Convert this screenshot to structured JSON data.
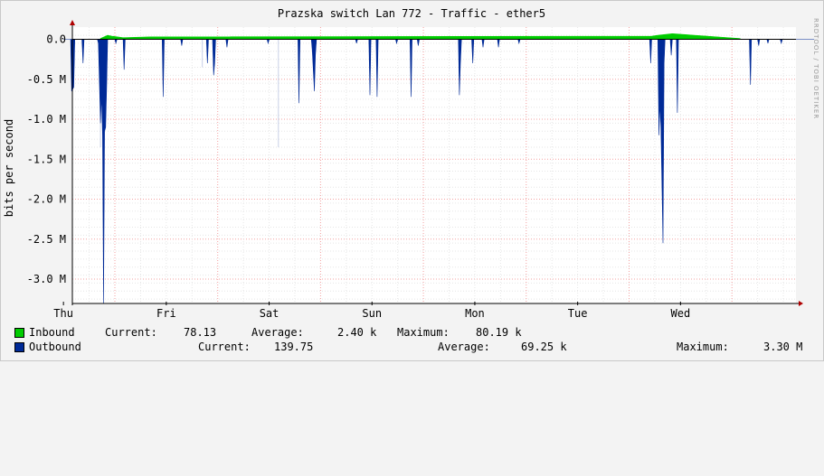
{
  "chart_data": {
    "type": "area",
    "title": "Prazska switch Lan 772 - Traffic - ether5",
    "ylabel": "bits per second",
    "xlabel": "",
    "ylim": [
      -3.3,
      0.05
    ],
    "y_unit": "M",
    "y_ticks": [
      0.0,
      -0.5,
      -1.0,
      -1.5,
      -2.0,
      -2.5,
      -3.0
    ],
    "y_tick_labels": [
      "0.0",
      "-0.5 M",
      "-1.0 M",
      "-1.5 M",
      "-2.0 M",
      "-2.5 M",
      "-3.0 M"
    ],
    "categories": [
      "Thu",
      "Fri",
      "Sat",
      "Sun",
      "Mon",
      "Tue",
      "Wed"
    ],
    "grid": true,
    "series": [
      {
        "name": "Inbound",
        "color": "#00cc00",
        "points": [
          [
            0.36,
            0.01
          ],
          [
            0.43,
            0.05
          ],
          [
            0.47,
            0.04
          ],
          [
            0.58,
            0.02
          ],
          [
            0.85,
            0.03
          ],
          [
            5.72,
            0.04
          ],
          [
            5.78,
            0.05
          ],
          [
            5.92,
            0.07
          ],
          [
            6.58,
            0.01
          ]
        ]
      },
      {
        "name": "Outbound",
        "color": "#002a97",
        "points": [
          [
            0.0,
            0.0
          ],
          [
            0.07,
            0.0
          ],
          [
            0.08,
            -0.65
          ],
          [
            0.1,
            -0.6
          ],
          [
            0.11,
            0.0
          ],
          [
            0.18,
            0.0
          ],
          [
            0.19,
            -0.3
          ],
          [
            0.2,
            0.0
          ],
          [
            0.33,
            0.0
          ],
          [
            0.34,
            -0.05
          ],
          [
            0.36,
            -1.05
          ],
          [
            0.37,
            -0.7
          ],
          [
            0.38,
            -1.2
          ],
          [
            0.39,
            -3.3
          ],
          [
            0.4,
            -1.15
          ],
          [
            0.41,
            -1.1
          ],
          [
            0.42,
            -0.6
          ],
          [
            0.43,
            0.0
          ],
          [
            0.5,
            0.0
          ],
          [
            0.51,
            -0.05
          ],
          [
            0.52,
            0.0
          ],
          [
            0.58,
            0.0
          ],
          [
            0.59,
            -0.38
          ],
          [
            0.6,
            0.0
          ],
          [
            0.96,
            0.0
          ],
          [
            0.97,
            -0.72
          ],
          [
            0.98,
            0.0
          ],
          [
            1.14,
            0.0
          ],
          [
            1.15,
            -0.08
          ],
          [
            1.16,
            0.0
          ],
          [
            1.39,
            0.0
          ],
          [
            1.4,
            -0.3
          ],
          [
            1.41,
            0.0
          ],
          [
            1.45,
            0.0
          ],
          [
            1.46,
            -0.45
          ],
          [
            1.47,
            -0.3
          ],
          [
            1.48,
            0.0
          ],
          [
            1.58,
            0.0
          ],
          [
            1.59,
            -0.1
          ],
          [
            1.6,
            0.0
          ],
          [
            1.98,
            0.0
          ],
          [
            1.99,
            -0.05
          ],
          [
            2.0,
            0.0
          ],
          [
            2.28,
            0.0
          ],
          [
            2.29,
            -0.8
          ],
          [
            2.3,
            0.0
          ],
          [
            2.41,
            0.0
          ],
          [
            2.42,
            -0.15
          ],
          [
            2.44,
            -0.65
          ],
          [
            2.45,
            -0.2
          ],
          [
            2.46,
            0.0
          ],
          [
            2.84,
            0.0
          ],
          [
            2.85,
            -0.05
          ],
          [
            2.86,
            0.0
          ],
          [
            2.97,
            0.0
          ],
          [
            2.98,
            -0.7
          ],
          [
            2.99,
            0.0
          ],
          [
            3.04,
            0.0
          ],
          [
            3.05,
            -0.72
          ],
          [
            3.06,
            0.0
          ],
          [
            3.23,
            0.0
          ],
          [
            3.24,
            -0.05
          ],
          [
            3.25,
            0.0
          ],
          [
            3.37,
            0.0
          ],
          [
            3.38,
            -0.72
          ],
          [
            3.39,
            0.0
          ],
          [
            3.44,
            0.0
          ],
          [
            3.45,
            -0.08
          ],
          [
            3.46,
            0.0
          ],
          [
            3.84,
            0.0
          ],
          [
            3.85,
            -0.7
          ],
          [
            3.86,
            -0.3
          ],
          [
            3.87,
            0.0
          ],
          [
            3.97,
            0.0
          ],
          [
            3.98,
            -0.3
          ],
          [
            3.99,
            0.0
          ],
          [
            4.07,
            0.0
          ],
          [
            4.08,
            -0.1
          ],
          [
            4.09,
            0.0
          ],
          [
            4.22,
            0.0
          ],
          [
            4.23,
            -0.1
          ],
          [
            4.24,
            0.0
          ],
          [
            4.42,
            0.0
          ],
          [
            4.43,
            -0.05
          ],
          [
            4.44,
            0.0
          ],
          [
            5.7,
            0.0
          ],
          [
            5.71,
            -0.3
          ],
          [
            5.72,
            0.0
          ],
          [
            5.78,
            0.0
          ],
          [
            5.79,
            -1.2
          ],
          [
            5.8,
            -0.8
          ],
          [
            5.81,
            -1.1
          ],
          [
            5.83,
            -2.55
          ],
          [
            5.84,
            -0.3
          ],
          [
            5.85,
            0.0
          ],
          [
            5.9,
            0.0
          ],
          [
            5.91,
            -0.2
          ],
          [
            5.92,
            0.0
          ],
          [
            5.96,
            0.0
          ],
          [
            5.97,
            -0.92
          ],
          [
            5.98,
            0.0
          ],
          [
            6.67,
            0.0
          ],
          [
            6.68,
            -0.57
          ],
          [
            6.69,
            0.0
          ],
          [
            6.75,
            0.0
          ],
          [
            6.76,
            -0.08
          ],
          [
            6.77,
            0.0
          ],
          [
            6.84,
            0.0
          ],
          [
            6.85,
            -0.05
          ],
          [
            6.86,
            0.0
          ],
          [
            6.97,
            0.0
          ],
          [
            6.98,
            -0.05
          ],
          [
            6.99,
            0.0
          ],
          [
            7.3,
            0.0
          ]
        ]
      }
    ],
    "light_spikes": [
      [
        0.36,
        -1.35
      ],
      [
        2.09,
        -1.35
      ],
      [
        1.35,
        -0.35
      ]
    ],
    "legend": [
      {
        "name": "Inbound",
        "color": "#00cc00",
        "current_label": "Current:",
        "current": "78.13",
        "average_label": "Average:",
        "average": "2.40 k",
        "maximum_label": "Maximum:",
        "maximum": "80.19 k"
      },
      {
        "name": "Outbound",
        "color": "#002a97",
        "current_label": "Current:",
        "current": "139.75",
        "average_label": "Average:",
        "average": "69.25 k",
        "maximum_label": "Maximum:",
        "maximum": "3.30 M"
      }
    ]
  },
  "watermark": "RRDTOOL / TOBI OETIKER"
}
